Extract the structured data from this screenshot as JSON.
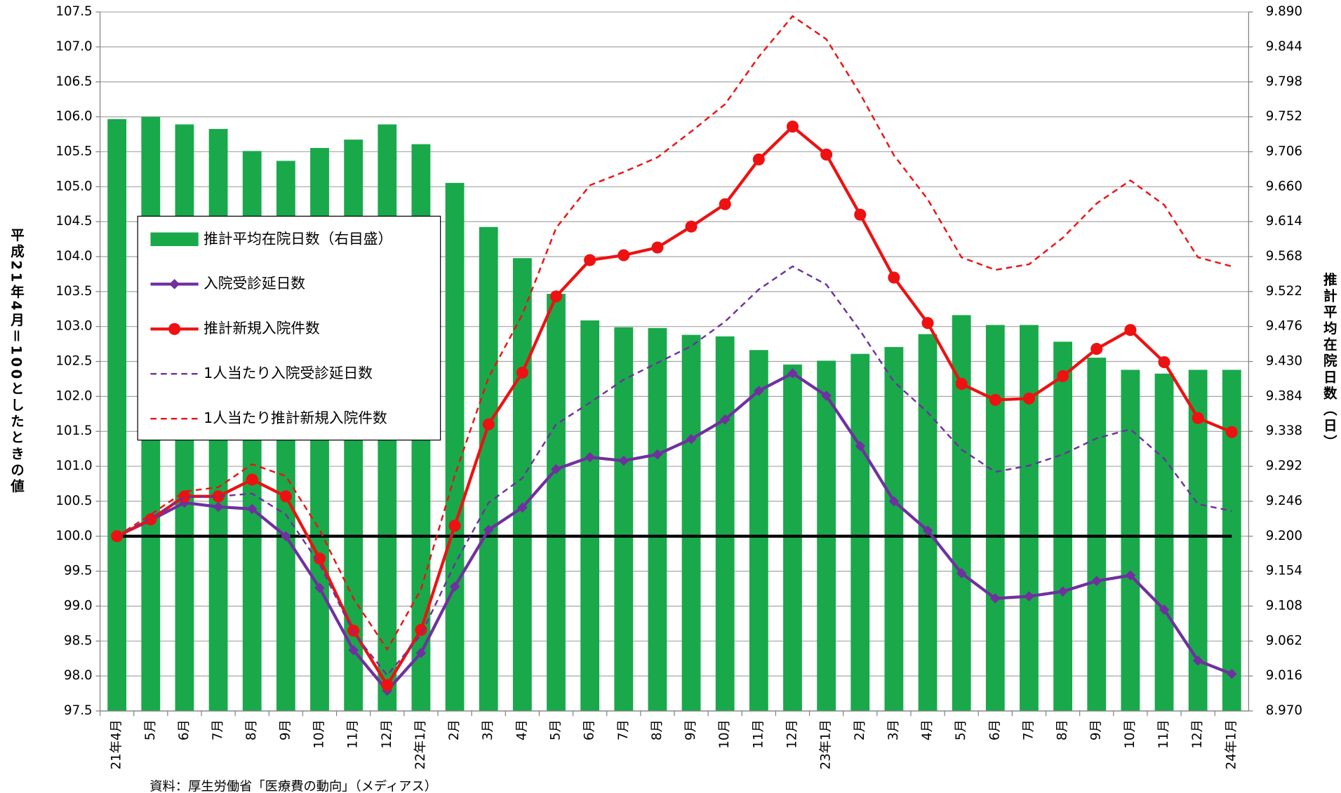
{
  "chart_data": {
    "type": "bar",
    "y_title": "平成21年4月＝100としたときの値",
    "y2_title": "推計平均在院日数（日）",
    "source": "資料：厚生労働省「医療費の動向」（メディアス）",
    "categories": [
      "21年4月",
      "5月",
      "6月",
      "7月",
      "8月",
      "9月",
      "10月",
      "11月",
      "12月",
      "22年1月",
      "2月",
      "3月",
      "4月",
      "5月",
      "6月",
      "7月",
      "8月",
      "9月",
      "10月",
      "11月",
      "12月",
      "23年1月",
      "2月",
      "3月",
      "4月",
      "5月",
      "6月",
      "7月",
      "8月",
      "9月",
      "10月",
      "11月",
      "12月",
      "24年1月"
    ],
    "ylim": [
      97.5,
      107.5
    ],
    "yticks": [
      97.5,
      {
        "value": 98.0,
        "label": "98.0"
      },
      98.5,
      {
        "value": 99.0,
        "label": "99.0"
      },
      99.5,
      {
        "value": 100.0,
        "label": "100.0"
      },
      100.5,
      {
        "value": 101.0,
        "label": "101.0"
      },
      101.5,
      {
        "value": 102.0,
        "label": "102.0"
      },
      102.5,
      {
        "value": 103.0,
        "label": "103.0"
      },
      103.5,
      {
        "value": 104.0,
        "label": "104.0"
      },
      104.5,
      {
        "value": 105.0,
        "label": "105.0"
      },
      105.5,
      {
        "value": 106.0,
        "label": "106.0"
      },
      106.5,
      {
        "value": 107.0,
        "label": "107.0"
      },
      107.5
    ],
    "y2lim": [
      8.97,
      9.89
    ],
    "y2ticks": [
      {
        "value": 8.97,
        "label": "8.970"
      },
      {
        "value": 9.016,
        "label": "9.016"
      },
      {
        "value": 9.062,
        "label": "9.062"
      },
      {
        "value": 9.108,
        "label": "9.108"
      },
      {
        "value": 9.154,
        "label": "9.154"
      },
      {
        "value": 9.2,
        "label": "9.200"
      },
      {
        "value": 9.246,
        "label": "9.246"
      },
      {
        "value": 9.292,
        "label": "9.292"
      },
      {
        "value": 9.338,
        "label": "9.338"
      },
      {
        "value": 9.384,
        "label": "9.384"
      },
      {
        "value": 9.43,
        "label": "9.430"
      },
      {
        "value": 9.476,
        "label": "9.476"
      },
      {
        "value": 9.522,
        "label": "9.522"
      },
      {
        "value": 9.568,
        "label": "9.568"
      },
      {
        "value": 9.614,
        "label": "9.614"
      },
      {
        "value": 9.66,
        "label": "9.660"
      },
      {
        "value": 9.706,
        "label": "9.706"
      },
      {
        "value": 9.752,
        "label": "9.752"
      },
      {
        "value": 9.798,
        "label": "9.798"
      },
      {
        "value": 9.844,
        "label": "9.844"
      },
      {
        "value": 9.89,
        "label": "9.890"
      }
    ],
    "grid": true,
    "reference_line": 100,
    "reference_color": "#000000",
    "series": [
      {
        "name": "推計平均在院日数（右目盛）",
        "type": "bar",
        "axis": "y2",
        "color": "#19a94b",
        "values": [
          9.749,
          9.752,
          9.742,
          9.736,
          9.707,
          9.694,
          9.711,
          9.722,
          9.742,
          9.716,
          9.665,
          9.607,
          9.566,
          9.519,
          9.484,
          9.475,
          9.474,
          9.465,
          9.463,
          9.445,
          9.426,
          9.431,
          9.44,
          9.449,
          9.466,
          9.491,
          9.478,
          9.478,
          9.456,
          9.435,
          9.419,
          9.414,
          9.419,
          9.419
        ]
      },
      {
        "name": "入院受診延日数",
        "type": "line",
        "marker": "diamond",
        "color": "#7030a0",
        "values": [
          100.0,
          100.23,
          100.48,
          100.42,
          100.39,
          100.0,
          99.26,
          98.37,
          97.79,
          98.33,
          99.28,
          100.09,
          100.41,
          100.96,
          101.13,
          101.08,
          101.17,
          101.39,
          101.67,
          102.08,
          102.33,
          102.01,
          101.29,
          100.5,
          100.08,
          99.47,
          99.11,
          99.14,
          99.21,
          99.36,
          99.44,
          98.95,
          98.22,
          98.03
        ]
      },
      {
        "name": "推計新規入院件数",
        "type": "line",
        "marker": "circle",
        "color": "#ee1111",
        "values": [
          100.0,
          100.24,
          100.57,
          100.57,
          100.81,
          100.57,
          99.68,
          98.65,
          97.87,
          98.66,
          100.15,
          101.6,
          102.34,
          103.43,
          103.95,
          104.02,
          104.13,
          104.43,
          104.75,
          105.39,
          105.86,
          105.46,
          104.6,
          103.7,
          103.05,
          102.18,
          101.95,
          101.97,
          102.29,
          102.68,
          102.95,
          102.49,
          101.69,
          101.49
        ]
      },
      {
        "name": "1人当たり入院受診延日数",
        "type": "line",
        "dashed": true,
        "color": "#7030a0",
        "values": [
          100.0,
          100.26,
          100.56,
          100.57,
          100.61,
          100.31,
          99.6,
          98.62,
          98.01,
          98.59,
          99.6,
          100.48,
          100.83,
          101.6,
          101.91,
          102.24,
          102.48,
          102.72,
          103.07,
          103.53,
          103.86,
          103.6,
          102.94,
          102.21,
          101.77,
          101.24,
          100.92,
          101.01,
          101.17,
          101.4,
          101.53,
          101.11,
          100.46,
          100.36
        ]
      },
      {
        "name": "1人当たり推計新規入院件数",
        "type": "line",
        "dashed": true,
        "color": "#ee1111",
        "values": [
          100.0,
          100.31,
          100.64,
          100.7,
          101.03,
          100.86,
          100.09,
          99.11,
          98.38,
          99.24,
          100.87,
          102.27,
          103.17,
          104.41,
          105.02,
          105.21,
          105.42,
          105.79,
          106.18,
          106.86,
          107.44,
          107.11,
          106.33,
          105.45,
          104.82,
          103.99,
          103.81,
          103.89,
          104.27,
          104.76,
          105.09,
          104.74,
          103.99,
          103.86
        ]
      }
    ]
  }
}
